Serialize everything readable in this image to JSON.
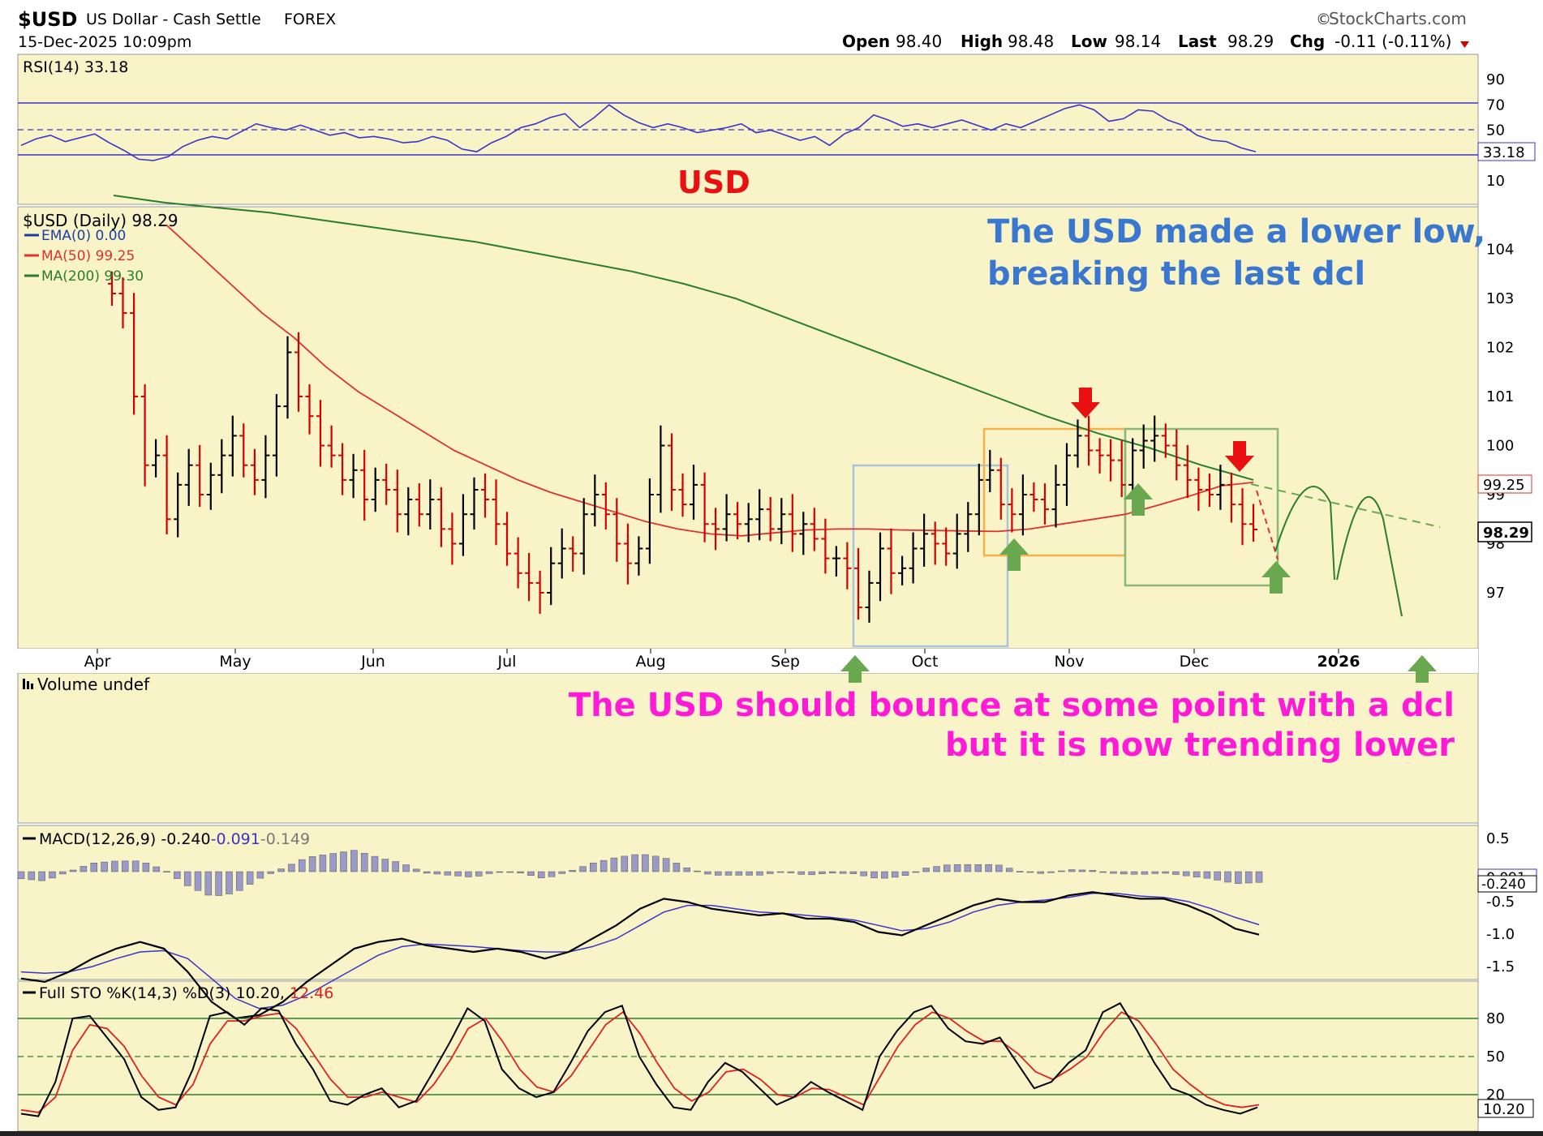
{
  "header": {
    "symbol": "$USD",
    "name": "US Dollar - Cash Settle",
    "exchange": "FOREX",
    "date": "15-Dec-2025 10:09pm",
    "brand": "StockCharts.com",
    "quote": {
      "open_label": "Open",
      "open": "98.40",
      "high_label": "High",
      "high": "98.48",
      "low_label": "Low",
      "low": "98.14",
      "last_label": "Last",
      "last": "98.29",
      "chg_label": "Chg",
      "chg": "-0.11 (-0.11%)"
    }
  },
  "colors": {
    "panel_bg": "#f8f4c8",
    "price_up": "#000000",
    "price_down": "#d40000",
    "ma50": "#e03030",
    "ma200": "#2a7d2a",
    "rsi": "#3b33c8",
    "macd": "#000000",
    "macd_signal": "#3b33c8",
    "stoch_k": "#000000",
    "stoch_d": "#e02020",
    "annot_blue": "#3a78d0",
    "annot_magenta": "#ff1ad8",
    "annot_red": "#e81010",
    "arrow_green": "#6aa84f",
    "arrow_red": "#e81010",
    "box_blue": "#a8c4dc",
    "box_orange": "#f5b04a",
    "box_green": "#8ab87a"
  },
  "chart_data": [
    {
      "type": "line",
      "panel": "rsi",
      "legend": "RSI(14) 33.18",
      "last_value": "33.18",
      "ylim": [
        0,
        100
      ],
      "ticks": [
        "90",
        "70",
        "50",
        "30",
        "10"
      ],
      "levels": [
        70,
        50,
        30
      ],
      "series": [
        {
          "values": [
            38,
            43,
            46,
            41,
            44,
            47,
            40,
            34,
            27,
            26,
            29,
            37,
            42,
            45,
            43,
            49,
            55,
            52,
            50,
            54,
            50,
            46,
            48,
            44,
            45,
            43,
            40,
            41,
            45,
            42,
            35,
            33,
            40,
            45,
            52,
            55,
            60,
            63,
            52,
            60,
            70,
            62,
            56,
            52,
            55,
            52,
            48,
            50,
            52,
            55,
            48,
            50,
            46,
            42,
            45,
            38,
            47,
            52,
            62,
            58,
            53,
            55,
            52,
            55,
            58,
            54,
            50,
            55,
            52,
            57,
            62,
            67,
            70,
            66,
            57,
            59,
            66,
            65,
            58,
            54,
            46,
            42,
            41,
            36,
            33
          ]
        }
      ]
    },
    {
      "type": "candlestick",
      "panel": "price",
      "legend": "$USD (Daily) 98.29",
      "indicators": [
        {
          "label": "EMA(0) 0.00",
          "color": "#1c3da8"
        },
        {
          "label": "MA(50) 99.25",
          "color": "#e03030"
        },
        {
          "label": "MA(200) 99.30",
          "color": "#2a7d2a"
        }
      ],
      "ylim": [
        96.0,
        105.0
      ],
      "y_ticks": [
        "104",
        "103",
        "102",
        "101",
        "100",
        "99",
        "98",
        "97"
      ],
      "x_ticks": [
        "Apr",
        "May",
        "Jun",
        "Jul",
        "Aug",
        "Sep",
        "Oct",
        "Nov",
        "Dec",
        "2026"
      ],
      "value_tags": [
        "99.25",
        "98.29"
      ],
      "closes": [
        103.1,
        102.7,
        101.0,
        99.6,
        99.8,
        98.5,
        99.2,
        99.6,
        99.0,
        99.4,
        99.8,
        100.2,
        99.6,
        99.3,
        99.8,
        100.8,
        101.9,
        101.0,
        100.6,
        100.0,
        99.8,
        99.3,
        99.5,
        98.9,
        99.3,
        99.1,
        98.6,
        98.9,
        98.6,
        98.9,
        98.3,
        98.0,
        98.6,
        99.1,
        98.9,
        98.4,
        97.8,
        97.4,
        97.2,
        97.0,
        97.6,
        97.9,
        97.8,
        98.6,
        99.0,
        98.6,
        98.0,
        97.6,
        97.9,
        99.0,
        100.0,
        99.1,
        98.8,
        99.2,
        98.4,
        98.3,
        98.6,
        98.4,
        98.5,
        98.7,
        98.3,
        98.6,
        98.2,
        98.4,
        98.1,
        97.7,
        97.7,
        97.5,
        96.7,
        97.2,
        97.9,
        97.4,
        97.5,
        97.9,
        98.2,
        98.0,
        97.8,
        98.2,
        98.6,
        99.3,
        99.5,
        98.8,
        98.6,
        99.0,
        98.9,
        98.7,
        99.2,
        99.8,
        100.2,
        99.9,
        99.8,
        99.7,
        99.2,
        99.9,
        100.1,
        100.2,
        100.0,
        99.6,
        99.3,
        99.1,
        99.0,
        99.2,
        98.8,
        98.4,
        98.29
      ],
      "ma50": [
        104.5,
        103.9,
        103.3,
        102.7,
        102.2,
        101.6,
        101.1,
        100.7,
        100.3,
        99.9,
        99.6,
        99.3,
        99.05,
        98.85,
        98.65,
        98.45,
        98.3,
        98.2,
        98.16,
        98.22,
        98.28,
        98.3,
        98.3,
        98.28,
        98.27,
        98.26,
        98.25,
        98.3,
        98.4,
        98.5,
        98.6,
        98.78,
        98.97,
        99.18,
        99.25
      ],
      "ma200": [
        105.1,
        104.95,
        104.85,
        104.75,
        104.6,
        104.45,
        104.3,
        104.15,
        103.95,
        103.75,
        103.55,
        103.3,
        103.0,
        102.6,
        102.2,
        101.8,
        101.4,
        101.0,
        100.6,
        100.25,
        99.95,
        99.6,
        99.3
      ],
      "projection": {
        "trendline_dashed": [
          [
            99.3
          ],
          [
            98.75
          ]
        ],
        "future_bounces": "three projected arcs"
      }
    },
    {
      "type": "bar",
      "panel": "volume",
      "legend": "Volume undef"
    },
    {
      "type": "line",
      "panel": "macd",
      "legend": {
        "main": "MACD(12,26,9) -0.240",
        "signal": "-0.091",
        "hist": "-0.149"
      },
      "y_ticks": [
        "0.5",
        "-0.5",
        "-1.0",
        "-1.5"
      ],
      "value_tags": [
        "-0.091",
        "-0.240"
      ],
      "ylim": [
        -1.7,
        0.6
      ],
      "series": [
        {
          "name": "MACD",
          "values": [
            -0.9,
            -0.95,
            -0.8,
            -0.6,
            -0.45,
            -0.35,
            -0.45,
            -0.8,
            -1.25,
            -1.5,
            -1.45,
            -1.25,
            -0.95,
            -0.7,
            -0.45,
            -0.35,
            -0.3,
            -0.4,
            -0.45,
            -0.5,
            -0.45,
            -0.5,
            -0.6,
            -0.5,
            -0.3,
            -0.1,
            0.15,
            0.3,
            0.25,
            0.15,
            0.1,
            0.05,
            0.08,
            0.0,
            0.0,
            -0.05,
            -0.2,
            -0.25,
            -0.1,
            0.05,
            0.2,
            0.3,
            0.25,
            0.25,
            0.35,
            0.4,
            0.35,
            0.3,
            0.3,
            0.2,
            0.05,
            -0.15,
            -0.24
          ]
        },
        {
          "name": "Signal",
          "values": [
            -0.8,
            -0.82,
            -0.8,
            -0.72,
            -0.6,
            -0.5,
            -0.48,
            -0.6,
            -0.9,
            -1.2,
            -1.35,
            -1.3,
            -1.15,
            -0.95,
            -0.75,
            -0.55,
            -0.42,
            -0.38,
            -0.4,
            -0.42,
            -0.45,
            -0.48,
            -0.5,
            -0.5,
            -0.42,
            -0.3,
            -0.1,
            0.1,
            0.2,
            0.2,
            0.15,
            0.1,
            0.08,
            0.05,
            0.02,
            -0.02,
            -0.1,
            -0.18,
            -0.15,
            -0.05,
            0.1,
            0.2,
            0.25,
            0.28,
            0.32,
            0.38,
            0.38,
            0.34,
            0.32,
            0.26,
            0.15,
            0.02,
            -0.09
          ]
        }
      ]
    },
    {
      "type": "line",
      "panel": "stochastic",
      "legend": {
        "main": "Full STO %K(14,3) %D(3) 10.20,",
        "d_value": "12.46"
      },
      "y_ticks": [
        "80",
        "50",
        "20"
      ],
      "value_tags": [
        "10.20"
      ],
      "ylim": [
        0,
        100
      ],
      "levels": [
        80,
        50,
        20
      ],
      "series": [
        {
          "name": "%K",
          "values": [
            5,
            3,
            30,
            80,
            82,
            65,
            48,
            18,
            8,
            10,
            40,
            82,
            85,
            75,
            88,
            86,
            60,
            40,
            15,
            12,
            20,
            25,
            10,
            15,
            38,
            62,
            88,
            78,
            40,
            25,
            18,
            22,
            45,
            70,
            85,
            90,
            50,
            28,
            10,
            8,
            30,
            45,
            38,
            25,
            12,
            18,
            30,
            22,
            15,
            8,
            50,
            70,
            85,
            90,
            72,
            62,
            60,
            65,
            45,
            25,
            30,
            45,
            55,
            85,
            92,
            70,
            45,
            25,
            20,
            12,
            8,
            5,
            10
          ]
        },
        {
          "name": "%D",
          "values": [
            8,
            6,
            18,
            55,
            75,
            72,
            58,
            35,
            18,
            12,
            28,
            60,
            78,
            78,
            82,
            84,
            72,
            52,
            32,
            18,
            18,
            22,
            18,
            14,
            28,
            48,
            72,
            80,
            62,
            40,
            26,
            22,
            35,
            55,
            75,
            85,
            68,
            45,
            25,
            15,
            22,
            38,
            40,
            32,
            20,
            18,
            25,
            24,
            18,
            12,
            35,
            58,
            75,
            85,
            80,
            70,
            62,
            62,
            52,
            38,
            32,
            40,
            50,
            70,
            85,
            78,
            60,
            40,
            28,
            18,
            12,
            10,
            12
          ]
        }
      ]
    }
  ],
  "annotations": {
    "usd_label": "USD",
    "top_text_1": "The USD made a lower low,",
    "top_text_2": "breaking the last dcl",
    "mid_text_1": "The USD should bounce at some point with a dcl",
    "mid_text_2": "but it is now trending lower"
  }
}
